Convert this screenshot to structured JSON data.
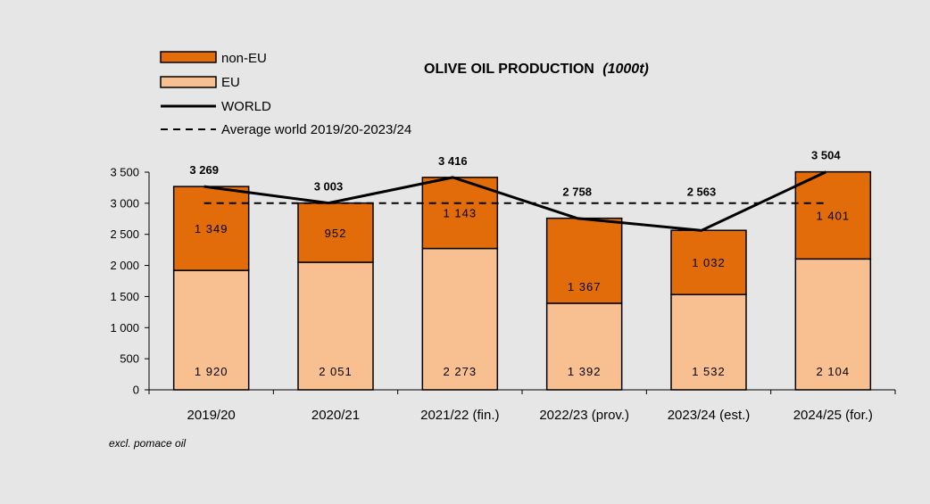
{
  "chart_data": {
    "type": "bar",
    "stacked": true,
    "title": "OLIVE OIL PRODUCTION",
    "title_unit": "(1000t)",
    "categories": [
      "2019/20",
      "2020/21",
      "2021/22 (fin.)",
      "2022/23 (prov.)",
      "2023/24 (est.)",
      "2024/25 (for.)"
    ],
    "series": [
      {
        "name": "EU",
        "values": [
          1920,
          2051,
          2273,
          1392,
          1532,
          2104
        ],
        "labels": [
          "1 920",
          "2 051",
          "2 273",
          "1 392",
          "1 532",
          "2 104"
        ],
        "color": "#f8c090"
      },
      {
        "name": "non-EU",
        "values": [
          1349,
          952,
          1143,
          1367,
          1032,
          1401
        ],
        "labels": [
          "1 349",
          "952",
          "1 143",
          "1 367",
          "1 032",
          "1 401"
        ],
        "color": "#e36c0a"
      }
    ],
    "world": {
      "name": "WORLD",
      "values": [
        3269,
        3003,
        3416,
        2758,
        2563,
        3504
      ],
      "labels": [
        "3 269",
        "3 003",
        "3 416",
        "2 758",
        "2 563",
        "3 504"
      ]
    },
    "average": {
      "name": "Average world 2019/20-2023/24",
      "value": 3002
    },
    "ylim": [
      0,
      3500
    ],
    "yticks": [
      0,
      500,
      1000,
      1500,
      2000,
      2500,
      3000,
      3500
    ],
    "ytick_labels": [
      "0",
      "500",
      "1 000",
      "1 500",
      "2 000",
      "2 500",
      "3 000",
      "3 500"
    ],
    "xlabel": "",
    "ylabel": "",
    "grid": false,
    "legend_position": "top-left",
    "note": "excl. pomace oil"
  }
}
